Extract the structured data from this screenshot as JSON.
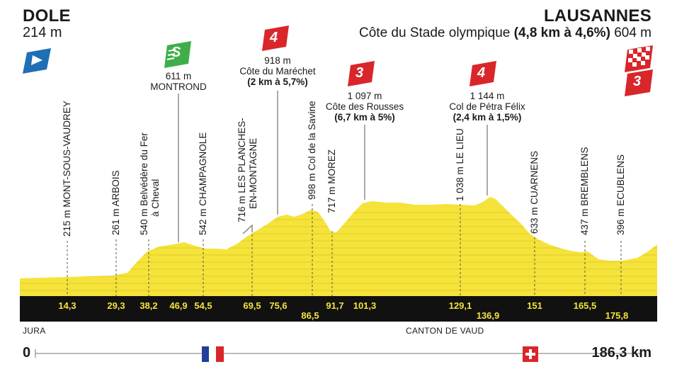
{
  "start": {
    "name": "DOLE",
    "altitude": "214 m"
  },
  "finish": {
    "name": "LAUSANNES",
    "climb_name": "Côte du Stade olympique",
    "climb_detail": "(4,8 km à 4,6%)",
    "altitude": "604 m",
    "category": "3"
  },
  "sprint": {
    "altitude": "611 m",
    "name": "MONTROND",
    "badge": "S"
  },
  "climbs": [
    {
      "category": "4",
      "altitude": "918 m",
      "name": "Côte du Maréchet",
      "detail": "(2 km à 5,7%)"
    },
    {
      "category": "3",
      "altitude": "1 097 m",
      "name": "Côte des Rousses",
      "detail": "(6,7 km à 5%)"
    },
    {
      "category": "4",
      "altitude": "1 144 m",
      "name": "Col de Pétra Félix",
      "detail": "(2,4 km à 1,5%)"
    }
  ],
  "waypoints": [
    {
      "label": "215 m MONT-SOUS-VAUDREY",
      "km": "14,3"
    },
    {
      "label": "261 m ARBOIS",
      "km": "29,3"
    },
    {
      "label": "540 m Belvédère du Fer",
      "label2": "à Cheval",
      "km": "38,2"
    },
    {
      "label": "",
      "km": "46,9"
    },
    {
      "label": "542 m CHAMPAGNOLE",
      "km": "54,5"
    },
    {
      "label": "716 m LES PLANCHES-",
      "label2": "EN-MONTAGNE",
      "km": "69,5"
    },
    {
      "label": "",
      "km": "75,6"
    },
    {
      "label": "998 m Col de la Savine",
      "km": "86,5"
    },
    {
      "label": "717 m MOREZ",
      "km": "91,7"
    },
    {
      "label": "",
      "km": "101,3"
    },
    {
      "label": "1 038 m LE LIEU",
      "km": "129,1"
    },
    {
      "label": "",
      "km": "136,9"
    },
    {
      "label": "633 m CUARNENS",
      "km": "151"
    },
    {
      "label": "437 m BREMBLENS",
      "km": "165,5"
    },
    {
      "label": "396 m ECUBLENS",
      "km": "175,8"
    }
  ],
  "regions": {
    "left": "JURA",
    "right": "CANTON DE VAUD"
  },
  "distance": {
    "start": "0",
    "end": "186,3 km"
  },
  "colors": {
    "profile": "#f5e33a",
    "sprint": "#3fae49",
    "climb": "#d9262b",
    "start_flag": "#1f6fb5",
    "band": "#111111",
    "ch_flag": "#d9262b",
    "fr_blue": "#1f3f9a"
  }
}
